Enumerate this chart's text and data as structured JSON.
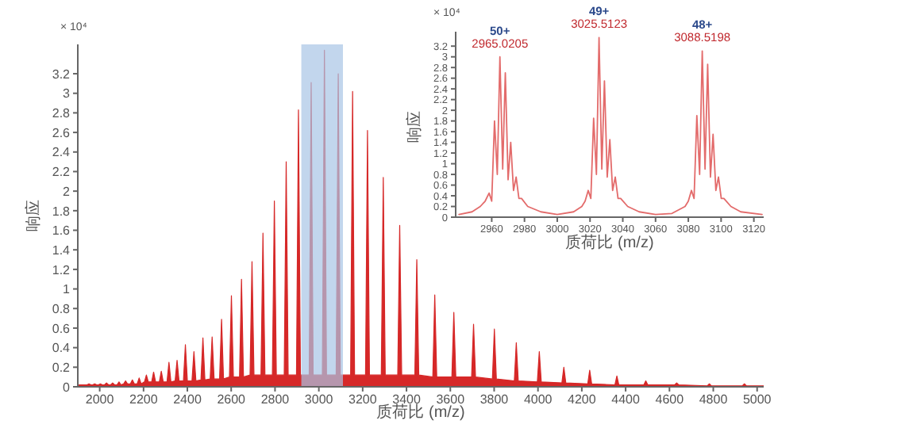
{
  "chart_data": [
    {
      "type": "area",
      "xlabel": "质荷比 (m/z)",
      "ylabel": "响应",
      "annotations": [
        "× 10⁴"
      ],
      "xlim": [
        1900,
        5030
      ],
      "xticks": [
        2000,
        2200,
        2400,
        2600,
        2800,
        3000,
        3200,
        3400,
        3600,
        3800,
        4000,
        4200,
        4400,
        4600,
        4800,
        5000
      ],
      "ylim": [
        0,
        3.5
      ],
      "yticks": [
        0,
        0.2,
        0.4,
        0.6,
        0.8,
        1.0,
        1.2,
        1.4,
        1.6,
        1.8,
        2.0,
        2.2,
        2.4,
        2.6,
        2.8,
        3.0,
        3.2
      ],
      "bands": [
        {
          "axis": "x",
          "from": 2920,
          "to": 3110,
          "color": "#a8c4e6"
        }
      ],
      "series": [
        {
          "color": "#d62828",
          "x": [
            1900,
            1942,
            1951,
            1960,
            1968,
            1977,
            1986,
            1994,
            2003,
            2012,
            2022,
            2031,
            2040,
            2050,
            2059,
            2068,
            2079,
            2088,
            2097,
            2109,
            2118,
            2127,
            2140,
            2149,
            2158,
            2171,
            2180,
            2189,
            2204,
            2213,
            2222,
            2237,
            2246,
            2255,
            2272,
            2281,
            2290,
            2307,
            2316,
            2325,
            2344,
            2353,
            2362,
            2382,
            2391,
            2400,
            2421,
            2430,
            2439,
            2462,
            2471,
            2480,
            2504,
            2513,
            2522,
            2547,
            2556,
            2565,
            2592,
            2601,
            2610,
            2638,
            2647,
            2656,
            2686,
            2695,
            2704,
            2736,
            2745,
            2754,
            2788,
            2797,
            2806,
            2842,
            2851,
            2860,
            2898,
            2907,
            2916,
            2956,
            2965,
            2974,
            3016,
            3025.5,
            3035,
            3079,
            3088.5,
            3098,
            3145,
            3154,
            3163,
            3213,
            3222,
            3231,
            3285,
            3294,
            3303,
            3360,
            3369,
            3378,
            3438,
            3447,
            3456,
            3520,
            3529,
            3538,
            3607,
            3616,
            3625,
            3697,
            3706,
            3715,
            3792,
            3801,
            3810,
            3892,
            3901,
            3910,
            3997,
            4006,
            4015,
            4109,
            4118,
            4127,
            4227,
            4236,
            4245,
            4351,
            4360,
            4369,
            4483,
            4492,
            4501,
            4624,
            4633,
            4642,
            4773,
            4782,
            4791,
            4933,
            4942,
            4951,
            5030
          ],
          "values": [
            0.02,
            0.02,
            0.03,
            0.02,
            0.02,
            0.03,
            0.02,
            0.02,
            0.03,
            0.02,
            0.02,
            0.04,
            0.02,
            0.02,
            0.04,
            0.02,
            0.02,
            0.05,
            0.02,
            0.03,
            0.06,
            0.03,
            0.03,
            0.07,
            0.03,
            0.03,
            0.09,
            0.03,
            0.05,
            0.12,
            0.05,
            0.05,
            0.15,
            0.05,
            0.05,
            0.16,
            0.05,
            0.05,
            0.25,
            0.05,
            0.06,
            0.27,
            0.06,
            0.06,
            0.43,
            0.06,
            0.06,
            0.36,
            0.06,
            0.07,
            0.5,
            0.07,
            0.08,
            0.51,
            0.08,
            0.08,
            0.69,
            0.08,
            0.1,
            0.93,
            0.1,
            0.1,
            1.1,
            0.1,
            0.12,
            1.28,
            0.12,
            0.12,
            1.57,
            0.12,
            0.12,
            1.9,
            0.12,
            0.12,
            2.3,
            0.12,
            0.12,
            2.83,
            0.12,
            0.12,
            3.11,
            0.12,
            0.12,
            3.44,
            0.12,
            0.12,
            3.2,
            0.12,
            0.12,
            3.02,
            0.12,
            0.12,
            2.62,
            0.12,
            0.12,
            2.14,
            0.12,
            0.12,
            1.65,
            0.12,
            0.12,
            1.3,
            0.12,
            0.1,
            0.94,
            0.1,
            0.1,
            0.76,
            0.1,
            0.1,
            0.64,
            0.1,
            0.08,
            0.59,
            0.08,
            0.06,
            0.45,
            0.06,
            0.05,
            0.36,
            0.05,
            0.04,
            0.2,
            0.04,
            0.03,
            0.17,
            0.03,
            0.02,
            0.11,
            0.02,
            0.02,
            0.06,
            0.02,
            0.02,
            0.04,
            0.02,
            0.01,
            0.03,
            0.01,
            0.01,
            0.03,
            0.01,
            0.01
          ]
        }
      ]
    },
    {
      "type": "line",
      "xlabel": "质荷比 (m/z)",
      "ylabel": "响应",
      "xlim": [
        2938,
        3126
      ],
      "xticks": [
        2960,
        2980,
        3000,
        3020,
        3040,
        3060,
        3080,
        3100,
        3120
      ],
      "ylim": [
        0,
        3.47
      ],
      "yticks": [
        0,
        0.2,
        0.4,
        0.6,
        0.8,
        1.0,
        1.2,
        1.4,
        1.6,
        1.8,
        2.0,
        2.2,
        2.4,
        2.6,
        2.8,
        3.0,
        3.2
      ],
      "annotations": [
        "× 10⁴",
        {
          "text": "50+",
          "x": 2965.0205,
          "y": 3.0
        },
        {
          "text": "2965.0205",
          "x": 2965.0205,
          "y": 3.0
        },
        {
          "text": "49+",
          "x": 3025.5123,
          "y": 3.36
        },
        {
          "text": "3025.5123",
          "x": 3025.5123,
          "y": 3.36
        },
        {
          "text": "48+",
          "x": 3088.5198,
          "y": 3.11
        },
        {
          "text": "3088.5198",
          "x": 3088.5198,
          "y": 3.11
        }
      ],
      "series": [
        {
          "color": "#e36b6b",
          "x": [
            2940,
            2948,
            2953,
            2956,
            2958.4,
            2960,
            2961.7,
            2963.4,
            2965.0,
            2966.7,
            2968.3,
            2970,
            2971.6,
            2973.3,
            2974.9,
            2976.6,
            2978.2,
            2982,
            2990,
            3000,
            3010,
            3015,
            3017,
            3018.9,
            3020.5,
            3022.2,
            3023.9,
            3025.5,
            3027.2,
            3028.8,
            3030.5,
            3032.1,
            3033.8,
            3035.4,
            3037.1,
            3038.7,
            3043,
            3050,
            3060,
            3070,
            3078,
            3080,
            3081.9,
            3083.5,
            3085.2,
            3086.9,
            3088.5,
            3090.2,
            3091.8,
            3093.5,
            3095.1,
            3096.8,
            3098.4,
            3100.1,
            3101.7,
            3106,
            3112,
            3125
          ],
          "values": [
            0.05,
            0.1,
            0.2,
            0.3,
            0.45,
            0.3,
            1.8,
            0.8,
            3.0,
            0.9,
            2.7,
            0.7,
            1.4,
            0.5,
            0.75,
            0.35,
            0.35,
            0.2,
            0.1,
            0.05,
            0.1,
            0.2,
            0.3,
            0.5,
            0.35,
            1.85,
            0.8,
            3.36,
            0.9,
            2.55,
            0.75,
            1.45,
            0.5,
            0.75,
            0.35,
            0.35,
            0.2,
            0.1,
            0.05,
            0.07,
            0.2,
            0.3,
            0.5,
            0.35,
            1.9,
            0.8,
            3.11,
            0.9,
            2.86,
            0.75,
            1.55,
            0.5,
            0.75,
            0.35,
            0.35,
            0.2,
            0.1,
            0.05
          ]
        }
      ]
    }
  ]
}
